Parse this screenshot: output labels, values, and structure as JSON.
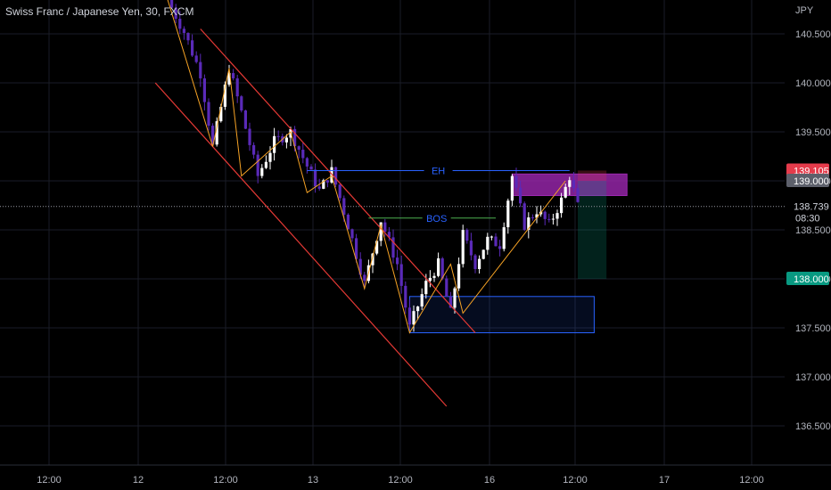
{
  "header": {
    "symbol_title": "Swiss Franc / Japanese Yen, 30, FXCM",
    "currency": "JPY"
  },
  "colors": {
    "background": "#000000",
    "grid": "#1a1d27",
    "axis_text": "#b2b5be",
    "candle_up": "#ffffff",
    "candle_down": "#5a2ab8",
    "channel": "#e53935",
    "zigzag": "#f7a325",
    "eh_line": "#2962ff",
    "bos_line": "#4caf50",
    "demand_zone": "#2962ff",
    "supply_zone": "#9c27b0",
    "price_marker": "#e53b4b",
    "target_marker": "#089981",
    "entry_marker": "#5d606b"
  },
  "annotations": {
    "eh_label": "EH",
    "bos_label": "BOS"
  },
  "price_markers": {
    "upper": "139.105",
    "entry": "139.000",
    "current": "138.739",
    "countdown": "08:30",
    "target": "138.000"
  },
  "chart_data": {
    "type": "candlestick",
    "y_axis": {
      "range": [
        136.35,
        140.82
      ],
      "ticks": [
        "140.500",
        "140.000",
        "139.500",
        "139.000",
        "138.500",
        "138.000",
        "137.500",
        "137.000",
        "136.500"
      ]
    },
    "x_axis": {
      "ticks": [
        "12:00",
        "12",
        "12:00",
        "13",
        "12:00",
        "16",
        "12:00",
        "17",
        "12:00"
      ]
    },
    "close_path": [
      [
        0,
        140.85
      ],
      [
        4,
        140.52
      ],
      [
        8,
        140.1
      ],
      [
        11,
        139.35
      ],
      [
        15,
        140.15
      ],
      [
        18,
        139.7
      ],
      [
        22,
        139.05
      ],
      [
        26,
        139.4
      ],
      [
        30,
        139.5
      ],
      [
        34,
        139.15
      ],
      [
        37,
        138.9
      ],
      [
        40,
        139.1
      ],
      [
        44,
        138.55
      ],
      [
        48,
        137.95
      ],
      [
        52,
        138.6
      ],
      [
        56,
        138.15
      ],
      [
        59,
        137.5
      ],
      [
        63,
        137.95
      ],
      [
        66,
        138.15
      ],
      [
        69,
        137.65
      ],
      [
        72,
        138.45
      ],
      [
        75,
        138.15
      ],
      [
        78,
        138.4
      ],
      [
        81,
        138.35
      ],
      [
        84,
        139.05
      ],
      [
        87,
        138.55
      ],
      [
        90,
        138.7
      ],
      [
        93,
        138.55
      ],
      [
        96,
        138.8
      ],
      [
        98,
        139.05
      ],
      [
        100,
        138.74
      ]
    ],
    "series": [
      {
        "type": "zigzag",
        "points": [
          [
            0,
            140.85
          ],
          [
            11,
            139.35
          ],
          [
            15,
            140.15
          ],
          [
            18,
            139.05
          ],
          [
            30,
            139.5
          ],
          [
            34,
            138.88
          ],
          [
            40,
            139.05
          ],
          [
            48,
            137.9
          ],
          [
            52,
            138.55
          ],
          [
            59,
            137.45
          ],
          [
            69,
            138.15
          ],
          [
            72,
            137.65
          ],
          [
            97,
            139.0
          ]
        ]
      }
    ],
    "channel": {
      "upper": [
        [
          8,
          140.55
        ],
        [
          75,
          137.45
        ]
      ],
      "lower": [
        [
          -3,
          140.0
        ],
        [
          68,
          136.7
        ]
      ]
    },
    "levels": [
      {
        "label": "EH",
        "price": 139.105,
        "x_range": [
          34,
          98
        ]
      },
      {
        "label": "BOS",
        "price": 138.62,
        "x_range": [
          49,
          80
        ]
      }
    ],
    "zones": [
      {
        "kind": "demand",
        "price_range": [
          137.45,
          137.82
        ],
        "x_range": [
          59,
          104
        ]
      },
      {
        "kind": "supply",
        "price_range": [
          138.85,
          139.07
        ],
        "x_range": [
          84,
          112
        ]
      }
    ],
    "position": {
      "kind": "short",
      "entry": 139.0,
      "stop": 139.105,
      "target": 138.0,
      "x_range": [
        100,
        107
      ]
    }
  }
}
